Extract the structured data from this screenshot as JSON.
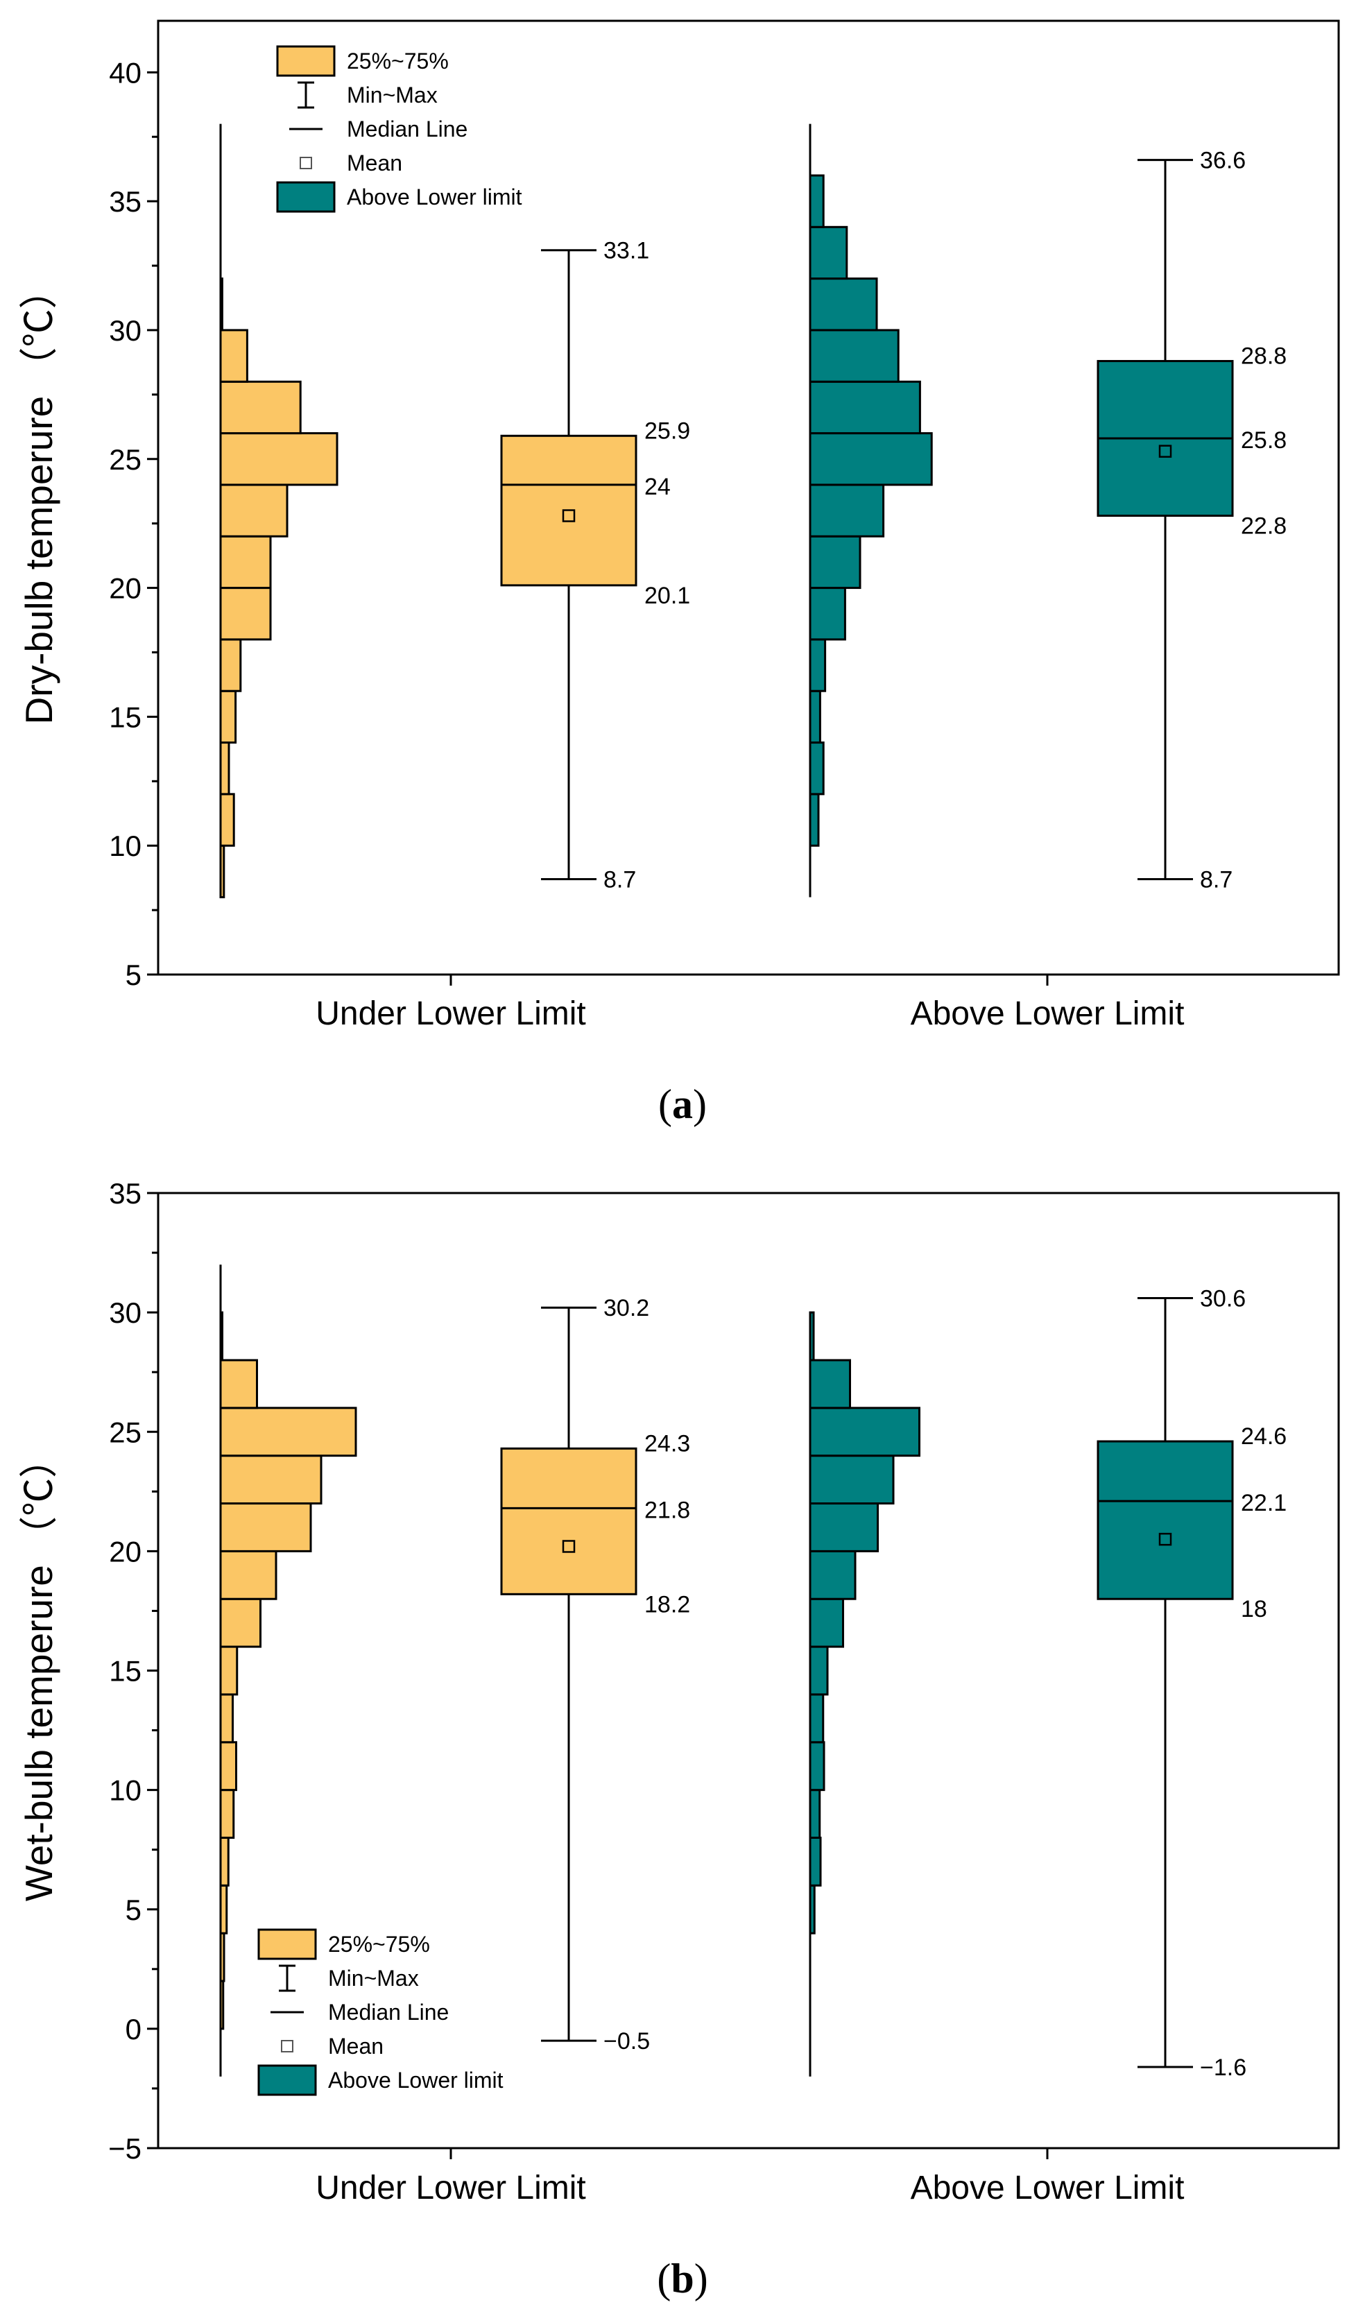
{
  "colors": {
    "under": "#FBC665",
    "above": "#008080",
    "line": "#000000",
    "background": "#FFFFFF"
  },
  "legend": {
    "box": "25%~75%",
    "range": "Min~Max",
    "median": "Median Line",
    "mean": "Mean",
    "above": "Above Lower limit"
  },
  "chart_data": [
    {
      "panel_label": "(a)",
      "panel_letter": "a",
      "type": "box_with_histogram",
      "title": "",
      "ylabel": "Dry-bulb temperure （℃）",
      "ylim": [
        5,
        42
      ],
      "yticks": [
        5,
        10,
        15,
        20,
        25,
        30,
        35,
        40
      ],
      "ytick_labels": [
        "5",
        "10",
        "15",
        "20",
        "25",
        "30",
        "35",
        "40"
      ],
      "categories": [
        "Under Lower Limit",
        "Above Lower Limit"
      ],
      "legend_position": "top-left",
      "groups": [
        {
          "name": "Under Lower Limit",
          "color_key": "under",
          "hist_range": [
            8,
            38
          ],
          "hist": {
            "bins": [
              8,
              10,
              12,
              14,
              16,
              18,
              20,
              22,
              24,
              26,
              28,
              30,
              32
            ],
            "counts": [
              0.2,
              0.8,
              0.5,
              0.9,
              1.2,
              3.0,
              3.0,
              4.0,
              7.0,
              4.8,
              1.6,
              0.1
            ]
          },
          "box": {
            "min": 8.7,
            "q1": 20.1,
            "median": 24,
            "q3": 25.9,
            "max": 33.1,
            "mean": 22.8,
            "labels": {
              "max": "33.1",
              "q3": "25.9",
              "median": "24",
              "q1": "20.1",
              "min": "8.7"
            }
          }
        },
        {
          "name": "Above Lower Limit",
          "color_key": "above",
          "hist_range": [
            8,
            38
          ],
          "hist": {
            "bins": [
              10,
              12,
              14,
              16,
              18,
              20,
              22,
              24,
              26,
              28,
              30,
              32,
              34,
              36
            ],
            "counts": [
              0.5,
              0.8,
              0.6,
              0.9,
              2.1,
              3.0,
              4.4,
              7.3,
              6.6,
              5.3,
              4.0,
              2.2,
              0.8
            ]
          },
          "box": {
            "min": 8.7,
            "q1": 22.8,
            "median": 25.8,
            "q3": 28.8,
            "max": 36.6,
            "mean": 25.3,
            "labels": {
              "max": "36.6",
              "q3": "28.8",
              "median": "25.8",
              "q1": "22.8",
              "min": "8.7"
            }
          }
        }
      ]
    },
    {
      "panel_label": "(b)",
      "panel_letter": "b",
      "type": "box_with_histogram",
      "title": "",
      "ylabel": "Wet-bulb temperure （℃）",
      "ylim": [
        -5,
        35
      ],
      "yticks": [
        -5,
        0,
        5,
        10,
        15,
        20,
        25,
        30,
        35
      ],
      "ytick_labels": [
        "−5",
        "0",
        "5",
        "10",
        "15",
        "20",
        "25",
        "30",
        "35"
      ],
      "categories": [
        "Under Lower Limit",
        "Above Lower Limit"
      ],
      "legend_position": "bottom-left",
      "groups": [
        {
          "name": "Under Lower Limit",
          "color_key": "under",
          "hist_range": [
            -2,
            32
          ],
          "hist": {
            "bins": [
              0,
              2,
              4,
              6,
              8,
              10,
              12,
              14,
              16,
              18,
              20,
              22,
              24,
              26,
              28,
              30
            ],
            "counts": [
              0.15,
              0.2,
              0.35,
              0.45,
              0.75,
              0.9,
              0.7,
              0.95,
              2.3,
              3.2,
              5.2,
              5.8,
              7.8,
              2.1,
              0.1
            ]
          },
          "box": {
            "min": -0.5,
            "q1": 18.2,
            "median": 21.8,
            "q3": 24.3,
            "max": 30.2,
            "mean": 20.2,
            "labels": {
              "max": "30.2",
              "q3": "24.3",
              "median": "21.8",
              "q1": "18.2",
              "min": "−0.5"
            }
          }
        },
        {
          "name": "Above Lower Limit",
          "color_key": "above",
          "hist_range": [
            -2,
            30
          ],
          "hist": {
            "bins": [
              4,
              6,
              8,
              10,
              12,
              14,
              16,
              18,
              20,
              22,
              24,
              26,
              28,
              30
            ],
            "counts": [
              0.25,
              0.6,
              0.55,
              0.8,
              0.75,
              1.0,
              1.9,
              2.6,
              3.9,
              4.8,
              6.3,
              2.3,
              0.2
            ]
          },
          "box": {
            "min": -1.6,
            "q1": 18,
            "median": 22.1,
            "q3": 24.6,
            "max": 30.6,
            "mean": 20.5,
            "labels": {
              "max": "30.6",
              "q3": "24.6",
              "median": "22.1",
              "q1": "18",
              "min": "−1.6"
            }
          }
        }
      ]
    }
  ]
}
